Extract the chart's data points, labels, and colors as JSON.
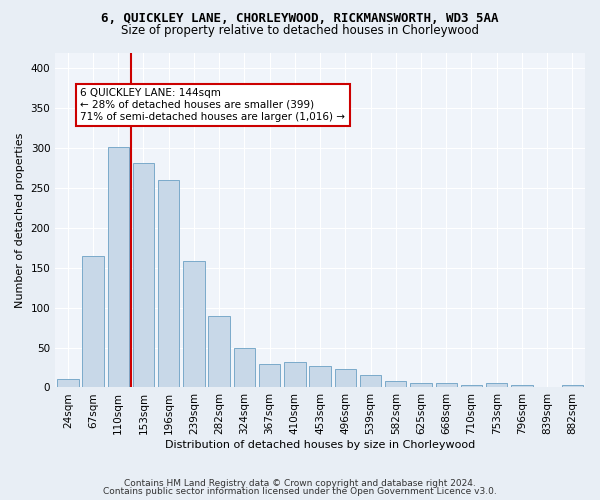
{
  "title": "6, QUICKLEY LANE, CHORLEYWOOD, RICKMANSWORTH, WD3 5AA",
  "subtitle": "Size of property relative to detached houses in Chorleywood",
  "xlabel": "Distribution of detached houses by size in Chorleywood",
  "ylabel": "Number of detached properties",
  "bin_labels": [
    "24sqm",
    "67sqm",
    "110sqm",
    "153sqm",
    "196sqm",
    "239sqm",
    "282sqm",
    "324sqm",
    "367sqm",
    "410sqm",
    "453sqm",
    "496sqm",
    "539sqm",
    "582sqm",
    "625sqm",
    "668sqm",
    "710sqm",
    "753sqm",
    "796sqm",
    "839sqm",
    "882sqm"
  ],
  "bar_heights": [
    10,
    165,
    302,
    282,
    260,
    158,
    90,
    49,
    30,
    32,
    27,
    23,
    15,
    8,
    5,
    5,
    3,
    5,
    3,
    0,
    3
  ],
  "bar_color": "#c8d8e8",
  "bar_edgecolor": "#7aaaca",
  "vline_color": "#cc0000",
  "vline_x_index": 2.5,
  "annotation_text": "6 QUICKLEY LANE: 144sqm\n← 28% of detached houses are smaller (399)\n71% of semi-detached houses are larger (1,016) →",
  "annotation_box_facecolor": "#ffffff",
  "annotation_box_edgecolor": "#cc0000",
  "ylim": [
    0,
    420
  ],
  "yticks": [
    0,
    50,
    100,
    150,
    200,
    250,
    300,
    350,
    400
  ],
  "footer1": "Contains HM Land Registry data © Crown copyright and database right 2024.",
  "footer2": "Contains public sector information licensed under the Open Government Licence v3.0.",
  "bg_color": "#e8eef5",
  "plot_bg_color": "#f0f4fa",
  "grid_color": "#ffffff",
  "title_fontsize": 9,
  "subtitle_fontsize": 8.5,
  "xlabel_fontsize": 8,
  "ylabel_fontsize": 8,
  "tick_fontsize": 7.5,
  "annotation_fontsize": 7.5,
  "footer_fontsize": 6.5
}
